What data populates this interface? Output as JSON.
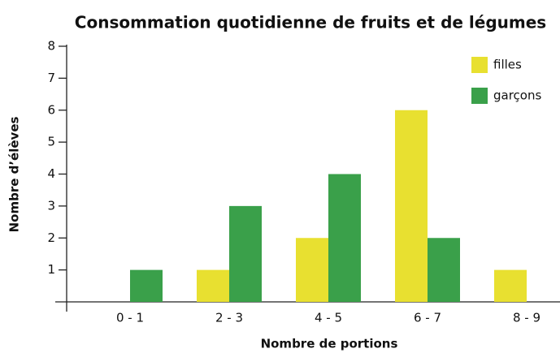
{
  "chart_data": {
    "type": "bar",
    "title": "Consommation quotidienne de fruits et de légumes",
    "x_label": "Nombre de portions",
    "y_label": "Nombre d’élèves",
    "categories": [
      "0 - 1",
      "2 - 3",
      "4 - 5",
      "6 - 7",
      "8 - 9"
    ],
    "series": [
      {
        "name": "filles",
        "color": "#e8e030",
        "values": [
          0,
          1,
          2,
          6,
          1
        ]
      },
      {
        "name": "garçons",
        "color": "#3aa04a",
        "values": [
          1,
          3,
          4,
          2,
          0
        ]
      }
    ],
    "ylim": [
      0,
      8
    ],
    "yticks": [
      1,
      2,
      3,
      4,
      5,
      6,
      7,
      8
    ],
    "legend": "top-right"
  }
}
